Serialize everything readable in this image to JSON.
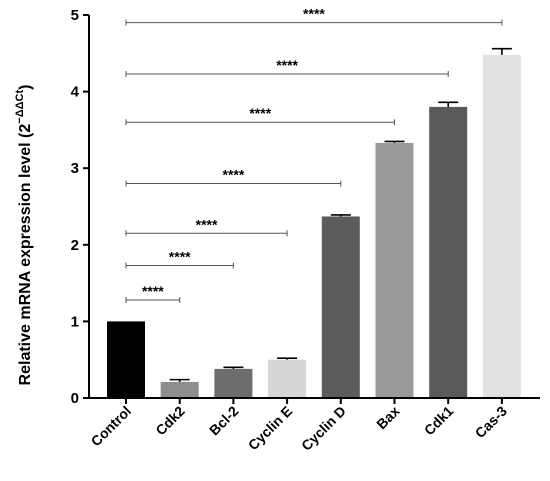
{
  "chart_data": {
    "type": "bar",
    "categories": [
      "Control",
      "Cdk2",
      "Bcl-2",
      "Cyclin E",
      "Cyclin D",
      "Bax",
      "Cdk1",
      "Cas-3"
    ],
    "values": [
      1.0,
      0.21,
      0.38,
      0.5,
      2.37,
      3.33,
      3.8,
      4.48
    ],
    "errors": [
      0.0,
      0.03,
      0.02,
      0.02,
      0.02,
      0.02,
      0.06,
      0.08
    ],
    "colors": [
      "#000000",
      "#8e8e8e",
      "#6d6d6d",
      "#d6d6d6",
      "#5c5c5c",
      "#9a9a9a",
      "#5a5a5a",
      "#e2e2e2"
    ],
    "ylabel_main": "Relative mRNA expression level (2",
    "ylabel_sup": "−ΔΔCt",
    "ylabel_end": ")",
    "xlabel": "",
    "ylim": [
      0,
      5
    ],
    "yticks": [
      "0",
      "1",
      "2",
      "3",
      "4",
      "5"
    ],
    "grid": false,
    "significance": [
      {
        "from": "Control",
        "to": "Cas-3",
        "y": 4.9,
        "label": "****"
      },
      {
        "from": "Control",
        "to": "Cdk1",
        "y": 4.23,
        "label": "****"
      },
      {
        "from": "Control",
        "to": "Bax",
        "y": 3.6,
        "label": "****"
      },
      {
        "from": "Control",
        "to": "Cyclin D",
        "y": 2.8,
        "label": "****"
      },
      {
        "from": "Control",
        "to": "Cyclin E",
        "y": 2.15,
        "label": "****"
      },
      {
        "from": "Control",
        "to": "Bcl-2",
        "y": 1.73,
        "label": "****"
      },
      {
        "from": "Control",
        "to": "Cdk2",
        "y": 1.28,
        "label": "****"
      }
    ]
  }
}
